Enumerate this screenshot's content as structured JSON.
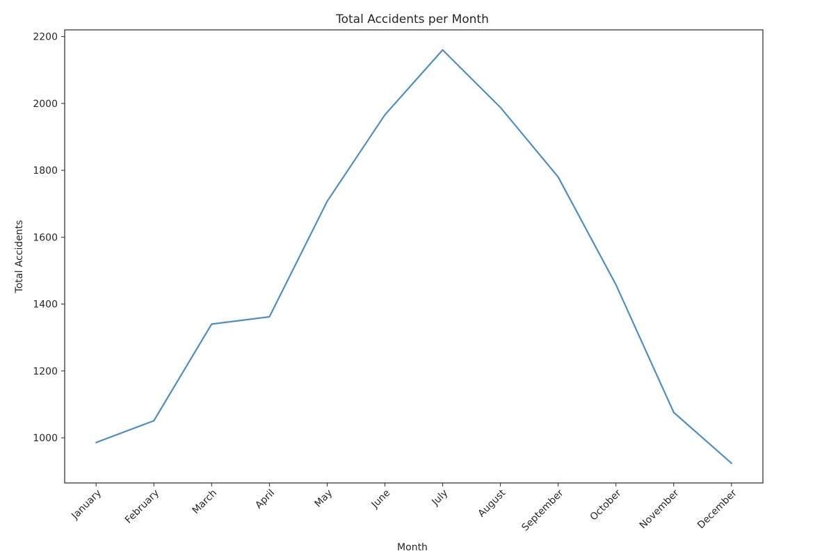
{
  "chart_data": {
    "type": "line",
    "title": "Total Accidents per Month",
    "xlabel": "Month",
    "ylabel": "Total Accidents",
    "categories": [
      "January",
      "February",
      "March",
      "April",
      "May",
      "June",
      "July",
      "August",
      "September",
      "October",
      "November",
      "December"
    ],
    "series": [
      {
        "values": [
          986,
          1051,
          1340,
          1362,
          1707,
          1966,
          2160,
          1988,
          1780,
          1458,
          1076,
          924
        ]
      }
    ],
    "yticks": [
      1000,
      1200,
      1400,
      1600,
      1800,
      2000,
      2200
    ],
    "ylim": [
      865,
      2220
    ],
    "grid": false,
    "legend": false,
    "colors": {
      "line": "#4a8ec2",
      "axis": "#262626",
      "background": "#ffffff"
    }
  }
}
